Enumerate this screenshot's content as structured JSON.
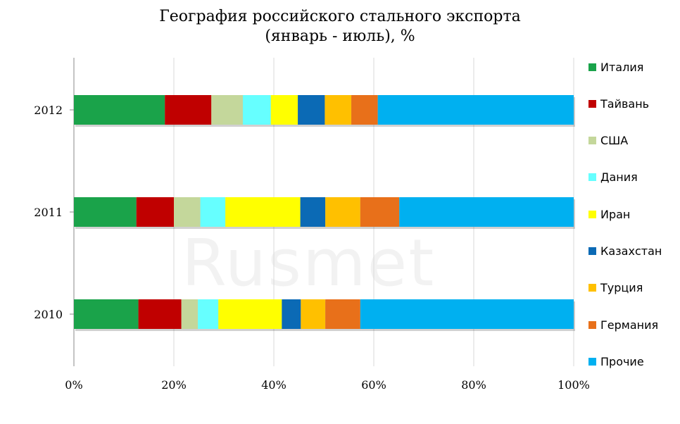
{
  "watermark": "Rusmet",
  "chart_data": {
    "type": "bar",
    "orientation": "horizontal",
    "stacked": "percent",
    "title": "География российского стального экспорта",
    "subtitle": "(январь - июль), %",
    "categories": [
      "2012",
      "2011",
      "2010"
    ],
    "xlim": [
      0,
      100
    ],
    "xticks": [
      "0%",
      "20%",
      "40%",
      "60%",
      "80%",
      "100%"
    ],
    "grid": true,
    "legend_position": "right",
    "series": [
      {
        "name": "Италия",
        "color": "#1aa34a",
        "values": [
          18.2,
          12.5,
          12.9
        ]
      },
      {
        "name": "Тайвань",
        "color": "#c00000",
        "values": [
          9.3,
          7.5,
          8.6
        ]
      },
      {
        "name": "США",
        "color": "#c4d79b",
        "values": [
          6.3,
          5.3,
          3.3
        ]
      },
      {
        "name": "Дания",
        "color": "#66ffff",
        "values": [
          5.6,
          5.0,
          4.1
        ]
      },
      {
        "name": "Иран",
        "color": "#ffff00",
        "values": [
          5.4,
          15.0,
          12.7
        ]
      },
      {
        "name": "Казахстан",
        "color": "#0b6ab5",
        "values": [
          5.4,
          5.0,
          3.8
        ]
      },
      {
        "name": "Турция",
        "color": "#ffc000",
        "values": [
          5.3,
          7.0,
          4.9
        ]
      },
      {
        "name": "Германия",
        "color": "#e8701a",
        "values": [
          5.3,
          7.8,
          7.0
        ]
      },
      {
        "name": "Прочие",
        "color": "#00b0f0",
        "values": [
          39.2,
          34.9,
          42.7
        ]
      }
    ]
  }
}
